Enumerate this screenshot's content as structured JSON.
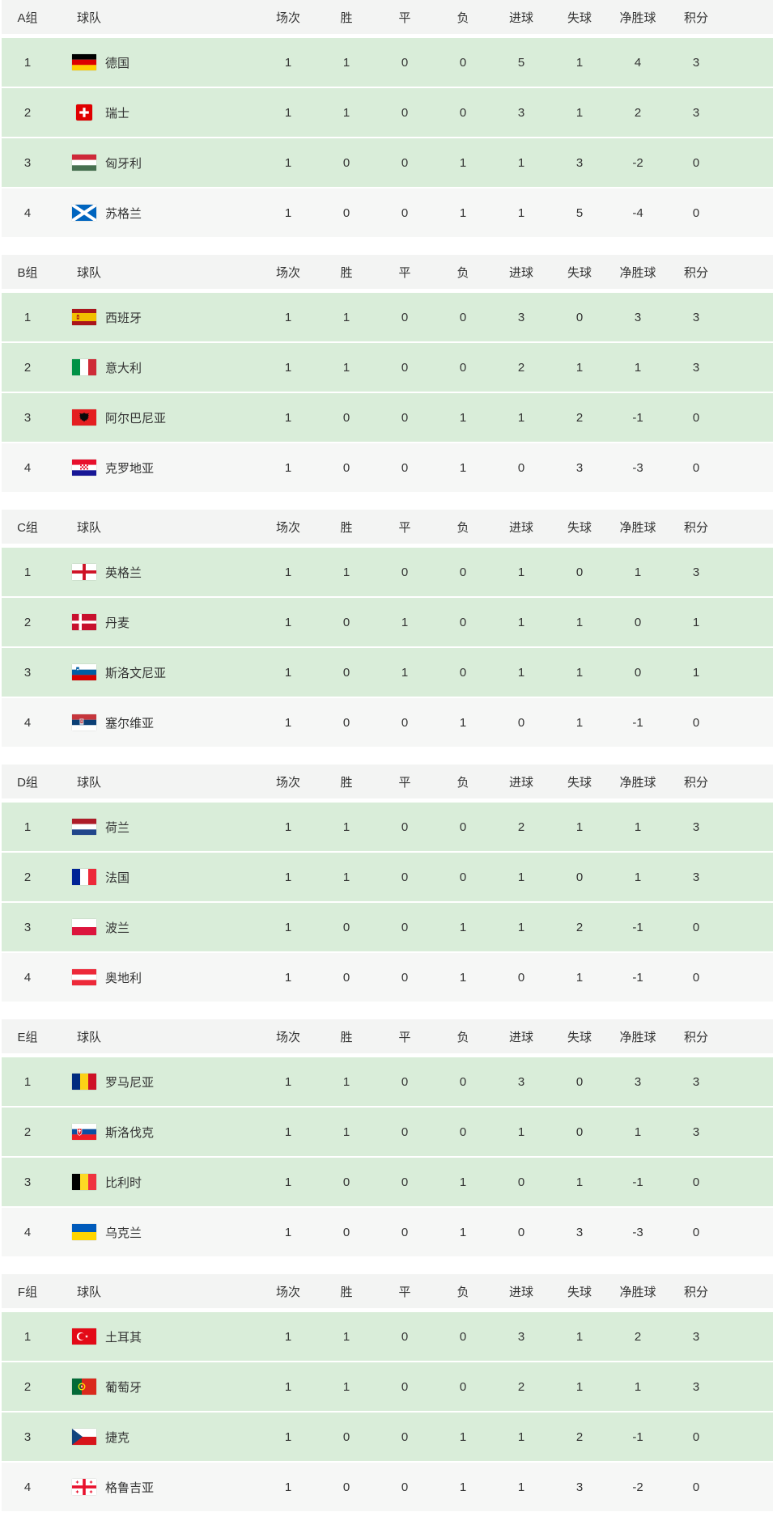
{
  "table": {
    "header_labels": {
      "team": "球队",
      "stats": [
        "场次",
        "胜",
        "平",
        "负",
        "进球",
        "失球",
        "净胜球",
        "积分"
      ]
    },
    "groups": [
      {
        "label": "A组",
        "teams": [
          {
            "rank": "1",
            "flag": "germany",
            "name": "德国",
            "stats": [
              "1",
              "1",
              "0",
              "0",
              "5",
              "1",
              "4",
              "3"
            ]
          },
          {
            "rank": "2",
            "flag": "switzerland",
            "name": "瑞士",
            "stats": [
              "1",
              "1",
              "0",
              "0",
              "3",
              "1",
              "2",
              "3"
            ]
          },
          {
            "rank": "3",
            "flag": "hungary",
            "name": "匈牙利",
            "stats": [
              "1",
              "0",
              "0",
              "1",
              "1",
              "3",
              "-2",
              "0"
            ]
          },
          {
            "rank": "4",
            "flag": "scotland",
            "name": "苏格兰",
            "stats": [
              "1",
              "0",
              "0",
              "1",
              "1",
              "5",
              "-4",
              "0"
            ]
          }
        ]
      },
      {
        "label": "B组",
        "teams": [
          {
            "rank": "1",
            "flag": "spain",
            "name": "西班牙",
            "stats": [
              "1",
              "1",
              "0",
              "0",
              "3",
              "0",
              "3",
              "3"
            ]
          },
          {
            "rank": "2",
            "flag": "italy",
            "name": "意大利",
            "stats": [
              "1",
              "1",
              "0",
              "0",
              "2",
              "1",
              "1",
              "3"
            ]
          },
          {
            "rank": "3",
            "flag": "albania",
            "name": "阿尔巴尼亚",
            "stats": [
              "1",
              "0",
              "0",
              "1",
              "1",
              "2",
              "-1",
              "0"
            ]
          },
          {
            "rank": "4",
            "flag": "croatia",
            "name": "克罗地亚",
            "stats": [
              "1",
              "0",
              "0",
              "1",
              "0",
              "3",
              "-3",
              "0"
            ]
          }
        ]
      },
      {
        "label": "C组",
        "teams": [
          {
            "rank": "1",
            "flag": "england",
            "name": "英格兰",
            "stats": [
              "1",
              "1",
              "0",
              "0",
              "1",
              "0",
              "1",
              "3"
            ]
          },
          {
            "rank": "2",
            "flag": "denmark",
            "name": "丹麦",
            "stats": [
              "1",
              "0",
              "1",
              "0",
              "1",
              "1",
              "0",
              "1"
            ]
          },
          {
            "rank": "3",
            "flag": "slovenia",
            "name": "斯洛文尼亚",
            "stats": [
              "1",
              "0",
              "1",
              "0",
              "1",
              "1",
              "0",
              "1"
            ]
          },
          {
            "rank": "4",
            "flag": "serbia",
            "name": "塞尔维亚",
            "stats": [
              "1",
              "0",
              "0",
              "1",
              "0",
              "1",
              "-1",
              "0"
            ]
          }
        ]
      },
      {
        "label": "D组",
        "teams": [
          {
            "rank": "1",
            "flag": "netherlands",
            "name": "荷兰",
            "stats": [
              "1",
              "1",
              "0",
              "0",
              "2",
              "1",
              "1",
              "3"
            ]
          },
          {
            "rank": "2",
            "flag": "france",
            "name": "法国",
            "stats": [
              "1",
              "1",
              "0",
              "0",
              "1",
              "0",
              "1",
              "3"
            ]
          },
          {
            "rank": "3",
            "flag": "poland",
            "name": "波兰",
            "stats": [
              "1",
              "0",
              "0",
              "1",
              "1",
              "2",
              "-1",
              "0"
            ]
          },
          {
            "rank": "4",
            "flag": "austria",
            "name": "奥地利",
            "stats": [
              "1",
              "0",
              "0",
              "1",
              "0",
              "1",
              "-1",
              "0"
            ]
          }
        ]
      },
      {
        "label": "E组",
        "teams": [
          {
            "rank": "1",
            "flag": "romania",
            "name": "罗马尼亚",
            "stats": [
              "1",
              "1",
              "0",
              "0",
              "3",
              "0",
              "3",
              "3"
            ]
          },
          {
            "rank": "2",
            "flag": "slovakia",
            "name": "斯洛伐克",
            "stats": [
              "1",
              "1",
              "0",
              "0",
              "1",
              "0",
              "1",
              "3"
            ]
          },
          {
            "rank": "3",
            "flag": "belgium",
            "name": "比利时",
            "stats": [
              "1",
              "0",
              "0",
              "1",
              "0",
              "1",
              "-1",
              "0"
            ]
          },
          {
            "rank": "4",
            "flag": "ukraine",
            "name": "乌克兰",
            "stats": [
              "1",
              "0",
              "0",
              "1",
              "0",
              "3",
              "-3",
              "0"
            ]
          }
        ]
      },
      {
        "label": "F组",
        "teams": [
          {
            "rank": "1",
            "flag": "turkey",
            "name": "土耳其",
            "stats": [
              "1",
              "1",
              "0",
              "0",
              "3",
              "1",
              "2",
              "3"
            ]
          },
          {
            "rank": "2",
            "flag": "portugal",
            "name": "葡萄牙",
            "stats": [
              "1",
              "1",
              "0",
              "0",
              "2",
              "1",
              "1",
              "3"
            ]
          },
          {
            "rank": "3",
            "flag": "czech",
            "name": "捷克",
            "stats": [
              "1",
              "0",
              "0",
              "1",
              "1",
              "2",
              "-1",
              "0"
            ]
          },
          {
            "rank": "4",
            "flag": "georgia",
            "name": "格鲁吉亚",
            "stats": [
              "1",
              "0",
              "0",
              "1",
              "1",
              "3",
              "-2",
              "0"
            ]
          }
        ]
      }
    ]
  },
  "colors": {
    "page_bg": "#ffffff",
    "header_row_bg": "#f3f4f3",
    "highlight_row_bg": "#d9edd9",
    "fourth_row_bg": "#f6f7f6",
    "text": "#333333"
  }
}
